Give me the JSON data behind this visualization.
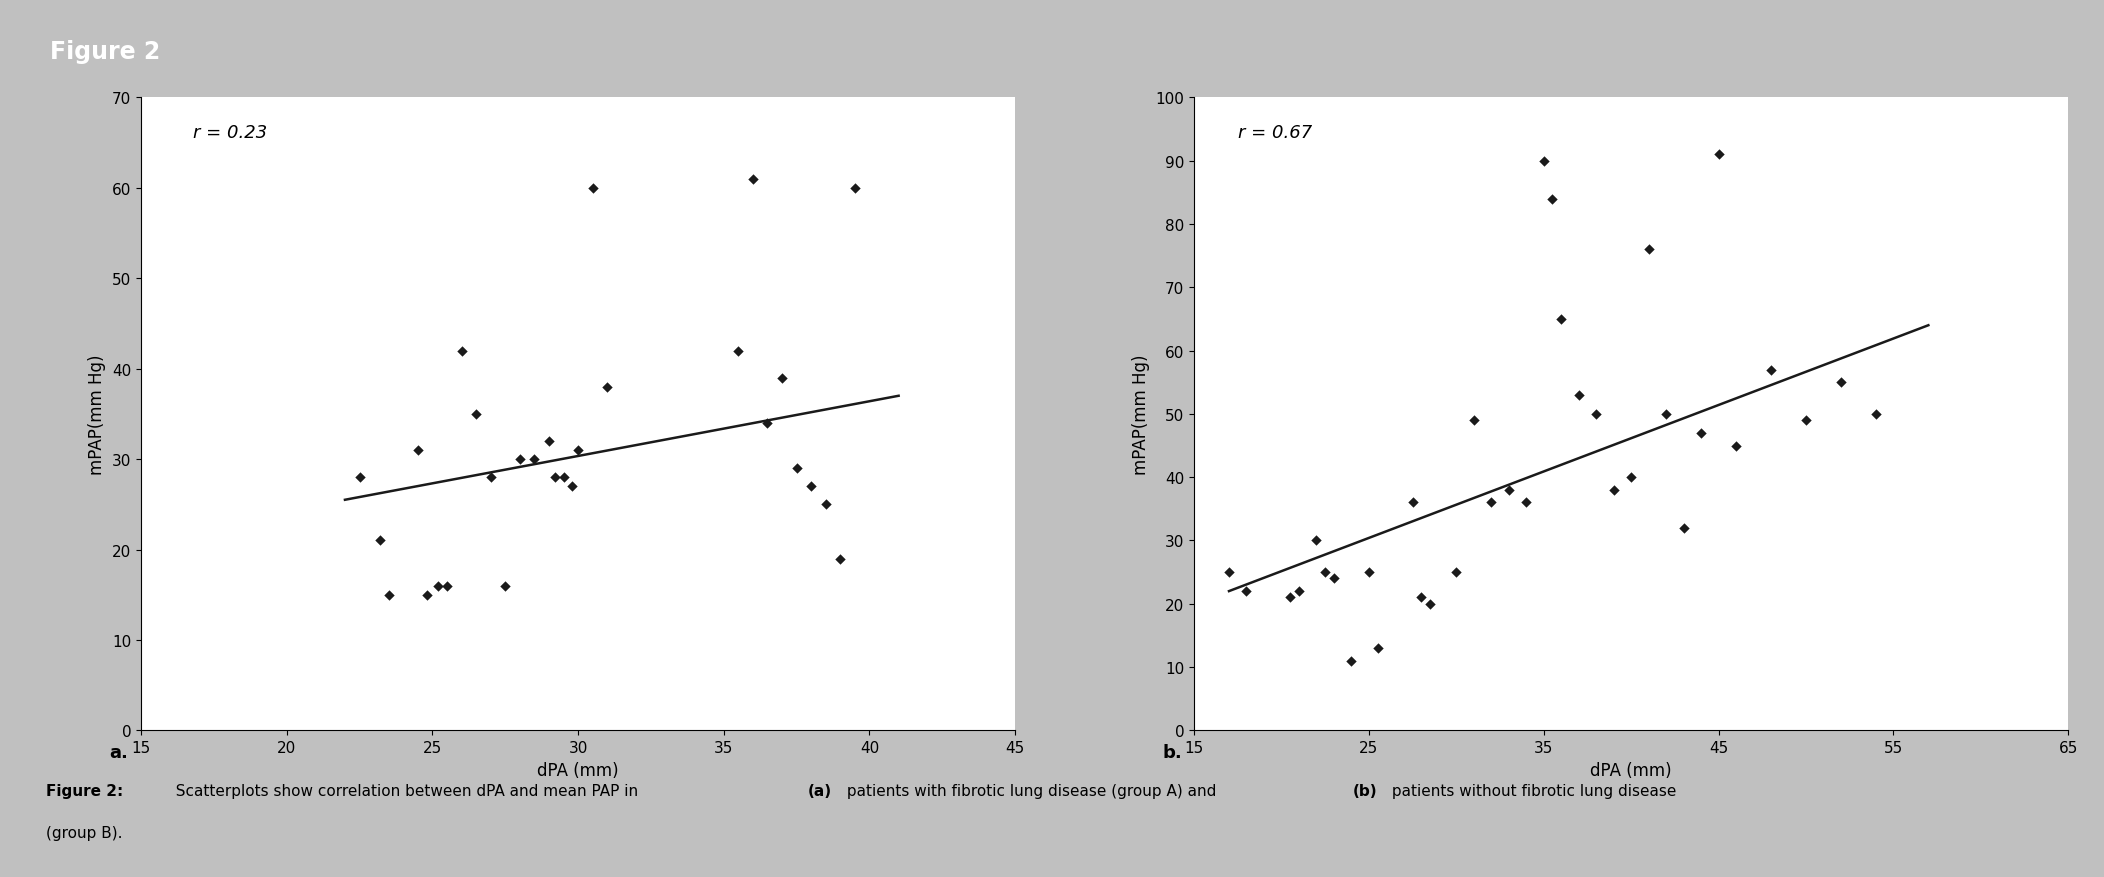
{
  "title": "Figure 2",
  "title_bg": "#1c8080",
  "title_color": "#ffffff",
  "border_color": "#a0a0a0",
  "bg_color": "#ffffff",
  "outer_bg": "#c8c8c8",
  "plot_a": {
    "r_label": "r = 0.23",
    "xlabel": "dPA (mm)",
    "ylabel": "mPAP(mm Hg)",
    "xlim": [
      15,
      45
    ],
    "ylim": [
      0,
      70
    ],
    "xticks": [
      15,
      20,
      25,
      30,
      35,
      40,
      45
    ],
    "yticks": [
      0,
      10,
      20,
      30,
      40,
      50,
      60,
      70
    ],
    "x": [
      22.5,
      23.2,
      23.5,
      24.5,
      24.8,
      25.2,
      25.5,
      26.0,
      26.5,
      27.0,
      27.5,
      28.0,
      28.5,
      29.0,
      29.2,
      29.5,
      29.8,
      30.0,
      30.5,
      31.0,
      35.5,
      36.0,
      36.5,
      37.0,
      37.5,
      38.0,
      38.5,
      39.0,
      39.5
    ],
    "y": [
      28,
      21,
      15,
      31,
      15,
      16,
      16,
      42,
      35,
      28,
      16,
      30,
      30,
      32,
      28,
      28,
      27,
      31,
      60,
      38,
      42,
      61,
      34,
      39,
      29,
      27,
      25,
      19,
      60
    ],
    "line_x": [
      22.0,
      41.0
    ],
    "line_y": [
      25.5,
      37.0
    ],
    "label_a": "a."
  },
  "plot_b": {
    "r_label": "r = 0.67",
    "xlabel": "dPA (mm)",
    "ylabel": "mPAP(mm Hg)",
    "xlim": [
      15,
      65
    ],
    "ylim": [
      0,
      100
    ],
    "xticks": [
      15,
      25,
      35,
      45,
      55,
      65
    ],
    "yticks": [
      0,
      10,
      20,
      30,
      40,
      50,
      60,
      70,
      80,
      90,
      100
    ],
    "x": [
      17.0,
      18.0,
      20.5,
      21.0,
      22.0,
      22.5,
      23.0,
      24.0,
      25.0,
      25.5,
      27.5,
      28.0,
      28.5,
      30.0,
      31.0,
      32.0,
      33.0,
      34.0,
      35.0,
      35.5,
      36.0,
      37.0,
      38.0,
      39.0,
      40.0,
      41.0,
      42.0,
      43.0,
      44.0,
      45.0,
      46.0,
      48.0,
      50.0,
      52.0,
      54.0
    ],
    "y": [
      25,
      22,
      21,
      22,
      30,
      25,
      24,
      11,
      25,
      13,
      36,
      21,
      20,
      25,
      49,
      36,
      38,
      36,
      90,
      84,
      65,
      53,
      50,
      38,
      40,
      76,
      50,
      32,
      47,
      91,
      45,
      57,
      49,
      55,
      50
    ],
    "line_x": [
      17.0,
      57.0
    ],
    "line_y": [
      22.0,
      64.0
    ],
    "label_b": "b."
  },
  "marker": "D",
  "marker_size": 28,
  "marker_color": "#1a1a1a",
  "line_color": "#1a1a1a",
  "line_width": 1.8,
  "caption_prefix": "Figure 2:",
  "caption_mid": "  Scatterplots show correlation between dPA and mean PAP in ",
  "caption_a": "(a)",
  "caption_after_a": " patients with fibrotic lung disease (group A) and ",
  "caption_b": "(b)",
  "caption_after_b": " patients without fibrotic lung disease",
  "caption_line2": "(group B).",
  "fontsize_caption": 11,
  "fontsize_axis_label": 12,
  "fontsize_tick": 11,
  "fontsize_r": 13,
  "fontsize_title": 17,
  "fontsize_label_ab": 13
}
